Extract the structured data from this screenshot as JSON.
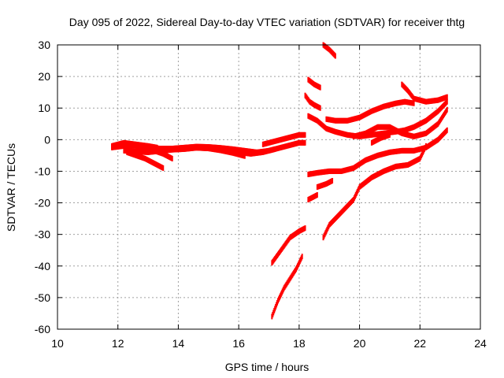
{
  "chart_data": {
    "type": "scatter",
    "title": "Day 095 of 2022, Sidereal Day-to-day VTEC variation (SDTVAR) for receiver thtg",
    "xlabel": "GPS time / hours",
    "ylabel": "SDTVAR / TECUs",
    "xlim": [
      10,
      24
    ],
    "ylim": [
      -60,
      30
    ],
    "xticks": [
      10,
      12,
      14,
      16,
      18,
      20,
      22,
      24
    ],
    "yticks": [
      -60,
      -50,
      -40,
      -30,
      -20,
      -10,
      0,
      10,
      20,
      30
    ],
    "grid": true,
    "marker_color": "#ff0000",
    "series": [
      {
        "x": [
          11.8,
          12.2,
          12.6,
          13.0,
          13.4,
          13.8,
          14.2,
          14.6,
          15.0,
          15.4,
          15.8,
          16.2,
          16.6,
          17.0,
          17.2
        ],
        "y": [
          -2.5,
          -2.0,
          -2.0,
          -2.5,
          -2.8,
          -2.8,
          -2.5,
          -2.2,
          -2.3,
          -2.6,
          -3.0,
          -3.5,
          -4.0,
          -3.5,
          -3.0
        ]
      },
      {
        "x": [
          11.8,
          12.2,
          12.6,
          13.0,
          13.3
        ],
        "y": [
          -2.0,
          -1.0,
          -1.5,
          -2.0,
          -2.5
        ]
      },
      {
        "x": [
          12.2,
          12.6,
          13.0,
          13.4,
          13.8,
          14.2,
          14.6,
          15.0,
          15.4,
          15.8,
          16.2
        ],
        "y": [
          -3.5,
          -3.8,
          -4.0,
          -3.6,
          -3.2,
          -3.0,
          -2.6,
          -2.8,
          -3.4,
          -4.2,
          -5.2
        ]
      },
      {
        "x": [
          12.3,
          12.6,
          12.9,
          13.2,
          13.5
        ],
        "y": [
          -4.0,
          -5.0,
          -6.0,
          -7.5,
          -9.0
        ]
      },
      {
        "x": [
          12.6,
          12.9,
          13.2,
          13.5,
          13.8
        ],
        "y": [
          -2.5,
          -3.0,
          -3.5,
          -4.5,
          -6.0
        ]
      },
      {
        "x": [
          16.0,
          16.4,
          16.8,
          17.2,
          17.6,
          18.0,
          18.2
        ],
        "y": [
          -4.0,
          -4.5,
          -4.0,
          -3.0,
          -2.0,
          -1.0,
          -1.0
        ]
      },
      {
        "x": [
          16.8,
          17.2,
          17.6,
          18.0,
          18.2
        ],
        "y": [
          -1.5,
          -0.5,
          0.5,
          1.5,
          1.5
        ]
      },
      {
        "x": [
          18.2,
          18.35,
          18.5,
          18.7
        ],
        "y": [
          14.0,
          12.0,
          11.0,
          10.0
        ]
      },
      {
        "x": [
          18.3,
          18.5,
          18.7
        ],
        "y": [
          19.0,
          17.5,
          16.5
        ]
      },
      {
        "x": [
          18.8,
          19.0,
          19.2
        ],
        "y": [
          30.0,
          28.5,
          26.5
        ]
      },
      {
        "x": [
          18.3,
          18.6,
          18.9,
          19.2,
          19.6,
          20.0,
          20.4,
          20.8,
          21.2,
          21.5,
          21.8,
          22.2,
          22.6,
          22.9
        ],
        "y": [
          7.5,
          6.0,
          3.5,
          2.5,
          1.5,
          1.0,
          1.5,
          2.0,
          2.5,
          3.0,
          4.0,
          6.0,
          9.0,
          12.0
        ]
      },
      {
        "x": [
          18.9,
          19.2,
          19.6,
          20.0,
          20.4,
          20.8,
          21.2,
          21.5,
          21.8
        ],
        "y": [
          6.5,
          6.0,
          6.0,
          7.0,
          9.0,
          10.5,
          11.5,
          12.0,
          11.5
        ]
      },
      {
        "x": [
          21.4,
          21.6,
          21.8,
          22.2,
          22.6,
          22.9
        ],
        "y": [
          17.5,
          15.5,
          13.0,
          12.0,
          12.5,
          13.5
        ]
      },
      {
        "x": [
          19.8,
          20.2,
          20.6,
          21.0,
          21.4,
          21.8,
          22.2,
          22.6,
          22.9
        ],
        "y": [
          1.0,
          2.0,
          4.0,
          4.0,
          2.0,
          1.0,
          2.0,
          5.0,
          9.5
        ]
      },
      {
        "x": [
          18.3,
          18.6,
          19.0,
          19.4,
          19.8,
          20.2,
          20.6,
          21.0,
          21.4,
          21.8,
          22.2,
          22.6,
          22.9
        ],
        "y": [
          -11.0,
          -10.5,
          -10.0,
          -10.0,
          -9.0,
          -6.5,
          -5.0,
          -4.0,
          -3.5,
          -3.5,
          -2.5,
          0.0,
          3.0
        ]
      },
      {
        "x": [
          20.4,
          20.7,
          21.0
        ],
        "y": [
          -1.0,
          0.5,
          1.5
        ]
      },
      {
        "x": [
          18.3,
          18.6
        ],
        "y": [
          -19.0,
          -17.5
        ]
      },
      {
        "x": [
          18.6,
          18.9,
          19.1
        ],
        "y": [
          -15.0,
          -14.0,
          -13.0
        ]
      },
      {
        "x": [
          18.8,
          19.0,
          19.2,
          19.5,
          19.8,
          20.0,
          20.4,
          20.8,
          21.2,
          21.6,
          22.0,
          22.2
        ],
        "y": [
          -31.0,
          -27.0,
          -25.0,
          -22.0,
          -19.0,
          -15.0,
          -12.0,
          -10.0,
          -8.5,
          -8.0,
          -6.0,
          -2.0
        ]
      },
      {
        "x": [
          17.1,
          17.4,
          17.7,
          18.0,
          18.2
        ],
        "y": [
          -39.0,
          -35.0,
          -31.0,
          -29.0,
          -28.0
        ]
      },
      {
        "x": [
          17.1,
          17.3,
          17.5,
          17.7,
          17.9,
          18.1
        ],
        "y": [
          -56.0,
          -51.0,
          -47.0,
          -44.0,
          -41.0,
          -37.0
        ]
      }
    ]
  }
}
